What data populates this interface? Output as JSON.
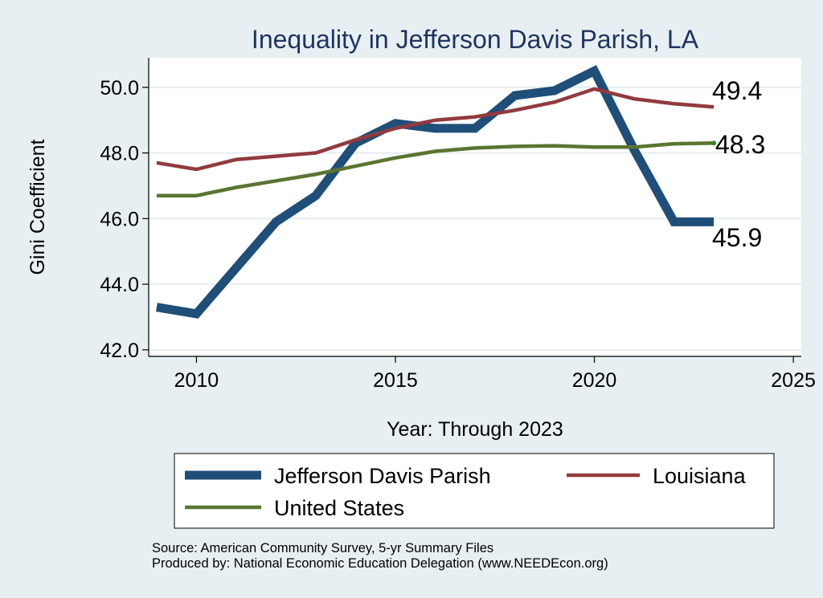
{
  "chart_data": {
    "type": "line",
    "title": "Inequality in Jefferson Davis Parish, LA",
    "xlabel": "Year: Through 2023",
    "ylabel": "Gini Coefficient",
    "xlim": [
      2008.8,
      2025.2
    ],
    "ylim": [
      41.8,
      50.9
    ],
    "xticks": [
      2010,
      2015,
      2020,
      2025
    ],
    "yticks": [
      42.0,
      44.0,
      46.0,
      48.0,
      50.0
    ],
    "ytick_labels": [
      "42.0",
      "44.0",
      "46.0",
      "48.0",
      "50.0"
    ],
    "grid": true,
    "series": [
      {
        "name": "Jefferson Davis Parish",
        "color": "#1f4e79",
        "x": [
          2009,
          2010,
          2011,
          2012,
          2013,
          2014,
          2015,
          2016,
          2017,
          2018,
          2019,
          2020,
          2021,
          2022,
          2023
        ],
        "y": [
          43.3,
          43.1,
          44.5,
          45.9,
          46.7,
          48.3,
          48.9,
          48.75,
          48.75,
          49.75,
          49.9,
          50.5,
          48.1,
          45.9,
          45.9
        ],
        "end_label": "45.9"
      },
      {
        "name": "Louisiana",
        "color": "#923a3e",
        "x": [
          2009,
          2010,
          2011,
          2012,
          2013,
          2014,
          2015,
          2016,
          2017,
          2018,
          2019,
          2020,
          2021,
          2022,
          2023
        ],
        "y": [
          47.7,
          47.5,
          47.8,
          47.9,
          48.0,
          48.4,
          48.75,
          49.0,
          49.1,
          49.3,
          49.55,
          49.95,
          49.65,
          49.5,
          49.4
        ],
        "end_label": "49.4"
      },
      {
        "name": "United States",
        "color": "#5a7530",
        "x": [
          2009,
          2010,
          2011,
          2012,
          2013,
          2014,
          2015,
          2016,
          2017,
          2018,
          2019,
          2020,
          2021,
          2022,
          2023
        ],
        "y": [
          46.7,
          46.7,
          46.95,
          47.15,
          47.35,
          47.6,
          47.85,
          48.05,
          48.15,
          48.2,
          48.22,
          48.18,
          48.18,
          48.28,
          48.3
        ],
        "end_label": "48.3"
      }
    ],
    "legend": {
      "position": "bottom",
      "entries": [
        "Jefferson Davis Parish",
        "Louisiana",
        "United States"
      ]
    },
    "source_lines": [
      "Source: American Community Survey, 5-yr Summary Files",
      "Produced by: National Economic Education Delegation (www.NEEDEcon.org)"
    ]
  }
}
